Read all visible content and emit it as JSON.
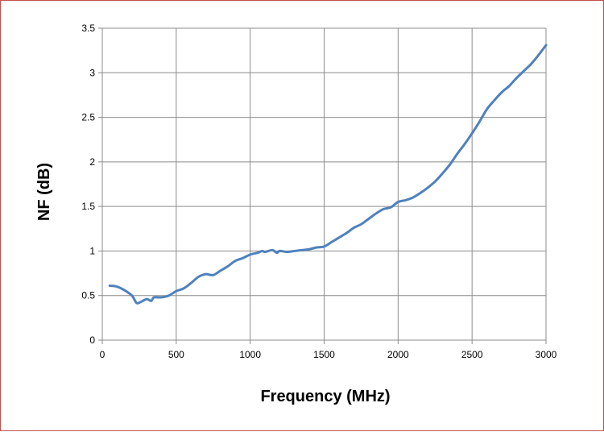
{
  "chart_data": {
    "type": "line",
    "title": "",
    "xlabel": "Frequency (MHz)",
    "ylabel": "NF (dB)",
    "xlim": [
      0,
      3000
    ],
    "ylim": [
      0,
      3.5
    ],
    "x_ticks": [
      0,
      500,
      1000,
      1500,
      2000,
      2500,
      3000
    ],
    "y_ticks": [
      0,
      0.5,
      1,
      1.5,
      2,
      2.5,
      3,
      3.5
    ],
    "x_tick_labels": [
      "0",
      "500",
      "1000",
      "1500",
      "2000",
      "2500",
      "3000"
    ],
    "y_tick_labels": [
      "0",
      "0.5",
      "1",
      "1.5",
      "2",
      "2.5",
      "3",
      "3.5"
    ],
    "grid": true,
    "legend": "none",
    "line_color": "#4f81bd",
    "grid_color": "#8c8c8c",
    "series": [
      {
        "x": [
          50,
          100,
          150,
          200,
          230,
          250,
          300,
          330,
          350,
          400,
          450,
          500,
          550,
          600,
          650,
          700,
          750,
          800,
          850,
          900,
          950,
          1000,
          1050,
          1080,
          1100,
          1150,
          1180,
          1200,
          1250,
          1300,
          1350,
          1400,
          1450,
          1500,
          1550,
          1600,
          1650,
          1700,
          1750,
          1800,
          1850,
          1900,
          1950,
          2000,
          2050,
          2100,
          2150,
          2200,
          2250,
          2300,
          2350,
          2400,
          2450,
          2500,
          2550,
          2600,
          2650,
          2700,
          2750,
          2800,
          2850,
          2900,
          2950,
          3000
        ],
        "y": [
          0.61,
          0.6,
          0.56,
          0.5,
          0.42,
          0.42,
          0.46,
          0.44,
          0.48,
          0.48,
          0.5,
          0.55,
          0.58,
          0.64,
          0.71,
          0.74,
          0.73,
          0.78,
          0.83,
          0.89,
          0.92,
          0.96,
          0.98,
          1.0,
          0.99,
          1.01,
          0.98,
          1.0,
          0.99,
          1.0,
          1.01,
          1.02,
          1.04,
          1.05,
          1.1,
          1.15,
          1.2,
          1.26,
          1.3,
          1.36,
          1.42,
          1.47,
          1.49,
          1.55,
          1.57,
          1.6,
          1.65,
          1.71,
          1.78,
          1.87,
          1.97,
          2.09,
          2.2,
          2.32,
          2.45,
          2.59,
          2.69,
          2.78,
          2.85,
          2.94,
          3.02,
          3.1,
          3.2,
          3.31
        ]
      }
    ]
  }
}
